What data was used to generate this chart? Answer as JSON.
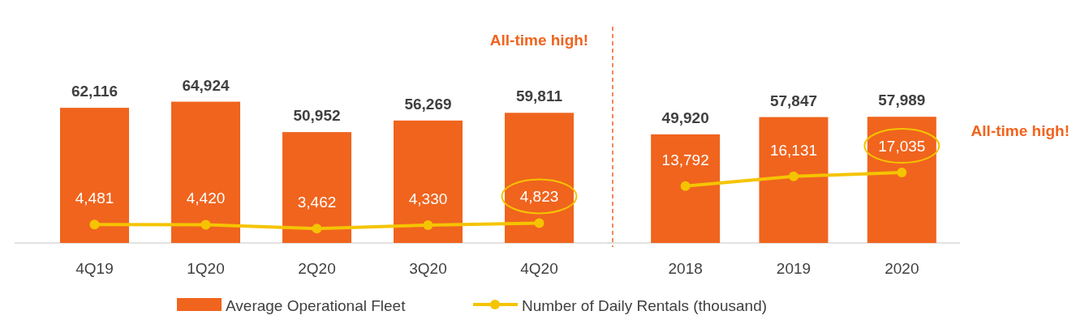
{
  "chart_data": [
    {
      "type": "bar",
      "categories": [
        "4Q19",
        "1Q20",
        "2Q20",
        "3Q20",
        "4Q20"
      ],
      "series": [
        {
          "name": "Average Operational Fleet",
          "color": "#f0641e",
          "values": [
            62116,
            64924,
            50952,
            56269,
            59811
          ],
          "value_labels": [
            "62,116",
            "64,924",
            "50,952",
            "56,269",
            "59,811"
          ]
        },
        {
          "name": "Number of Daily Rentals (thousand)",
          "type": "line",
          "axis": "y2",
          "color": "#f5c400",
          "marker": "circle",
          "values": [
            4481,
            4420,
            3462,
            4330,
            4823
          ],
          "value_labels": [
            "4,481",
            "4,420",
            "3,462",
            "4,330",
            "4,823"
          ]
        }
      ],
      "legend": "bottom",
      "annotations": [
        "All-time high!"
      ]
    },
    {
      "type": "bar",
      "categories": [
        "2018",
        "2019",
        "2020"
      ],
      "series": [
        {
          "color": "#f0641e",
          "values": [
            49920,
            57847,
            57989
          ],
          "value_labels": [
            "49,920",
            "57,847",
            "57,989"
          ]
        },
        {
          "type": "line",
          "axis": "y2",
          "color": "#f5c400",
          "marker": "circle",
          "values": [
            13792,
            16131,
            17035
          ],
          "value_labels": [
            "13,792",
            "16,131",
            "17,035"
          ]
        }
      ],
      "annotations": [
        "All-time high!"
      ]
    }
  ]
}
